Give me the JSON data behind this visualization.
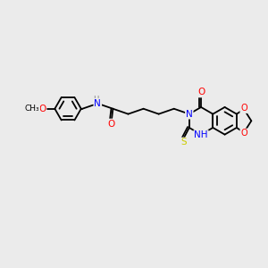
{
  "bg_color": "#ebebeb",
  "atom_colors": {
    "N": "#0000FF",
    "O": "#FF0000",
    "S": "#CCCC00",
    "C": "#000000",
    "H": "#808080"
  },
  "bond_width": 1.3,
  "font_size": 7.0,
  "fig_width": 3.0,
  "fig_height": 3.0,
  "xlim": [
    0,
    10
  ],
  "ylim": [
    0,
    10
  ]
}
